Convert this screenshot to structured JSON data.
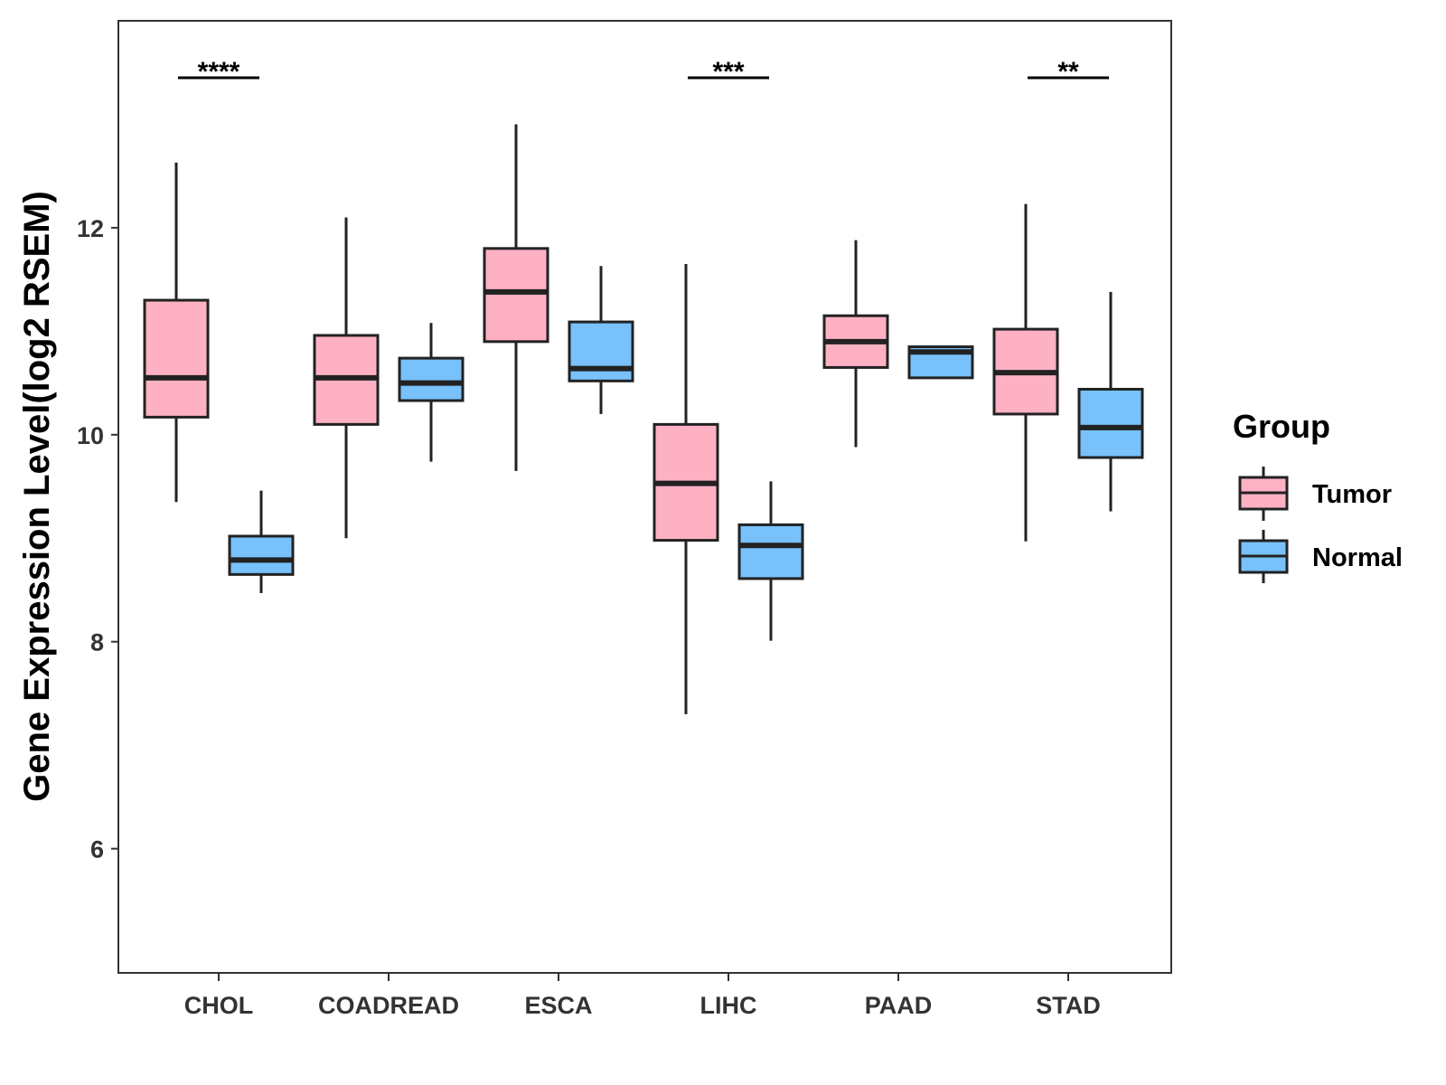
{
  "chart_data": {
    "type": "boxplot",
    "title": "",
    "xlabel": "",
    "ylabel": "Gene Expression Level(log2 RSEM)",
    "ylim": [
      4.8,
      14.0
    ],
    "yticks": [
      6,
      8,
      10,
      12
    ],
    "categories": [
      "CHOL",
      "COADREAD",
      "ESCA",
      "LIHC",
      "PAAD",
      "STAD"
    ],
    "legend": {
      "title": "Group",
      "position": "right",
      "entries": [
        {
          "name": "Tumor",
          "color": "#FFB1C4"
        },
        {
          "name": "Normal",
          "color": "#78C1FA"
        }
      ]
    },
    "series": [
      {
        "name": "Tumor",
        "color": "#FFB1C4",
        "boxes": [
          {
            "category": "CHOL",
            "whisker_low": 9.35,
            "q1": 10.17,
            "median": 10.55,
            "q3": 11.3,
            "whisker_high": 12.63
          },
          {
            "category": "COADREAD",
            "whisker_low": 9.0,
            "q1": 10.1,
            "median": 10.55,
            "q3": 10.96,
            "whisker_high": 12.1
          },
          {
            "category": "ESCA",
            "whisker_low": 9.65,
            "q1": 10.9,
            "median": 11.38,
            "q3": 11.8,
            "whisker_high": 13.0
          },
          {
            "category": "LIHC",
            "whisker_low": 7.3,
            "q1": 8.98,
            "median": 9.53,
            "q3": 10.1,
            "whisker_high": 11.65
          },
          {
            "category": "PAAD",
            "whisker_low": 9.88,
            "q1": 10.65,
            "median": 10.9,
            "q3": 11.15,
            "whisker_high": 11.88
          },
          {
            "category": "STAD",
            "whisker_low": 8.97,
            "q1": 10.2,
            "median": 10.6,
            "q3": 11.02,
            "whisker_high": 12.23
          }
        ]
      },
      {
        "name": "Normal",
        "color": "#78C1FA",
        "boxes": [
          {
            "category": "CHOL",
            "whisker_low": 8.47,
            "q1": 8.65,
            "median": 8.79,
            "q3": 9.02,
            "whisker_high": 9.46
          },
          {
            "category": "COADREAD",
            "whisker_low": 9.74,
            "q1": 10.33,
            "median": 10.5,
            "q3": 10.74,
            "whisker_high": 11.08
          },
          {
            "category": "ESCA",
            "whisker_low": 10.2,
            "q1": 10.52,
            "median": 10.64,
            "q3": 11.09,
            "whisker_high": 11.63
          },
          {
            "category": "LIHC",
            "whisker_low": 8.01,
            "q1": 8.61,
            "median": 8.93,
            "q3": 9.13,
            "whisker_high": 9.55
          },
          {
            "category": "PAAD",
            "whisker_low": 10.55,
            "q1": 10.55,
            "median": 10.8,
            "q3": 10.85,
            "whisker_high": 10.85
          },
          {
            "category": "STAD",
            "whisker_low": 9.26,
            "q1": 9.78,
            "median": 10.07,
            "q3": 10.44,
            "whisker_high": 11.38
          }
        ]
      }
    ],
    "annotations": [
      {
        "category": "CHOL",
        "label": "****",
        "y": 13.45
      },
      {
        "category": "LIHC",
        "label": "***",
        "y": 13.45
      },
      {
        "category": "STAD",
        "label": "**",
        "y": 13.45
      }
    ]
  }
}
